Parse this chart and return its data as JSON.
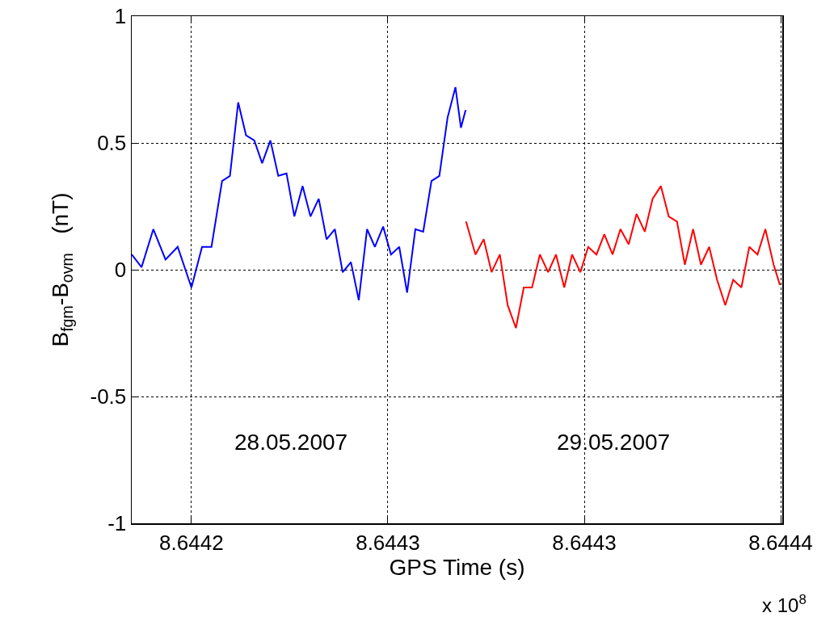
{
  "chart_data": {
    "type": "line",
    "xlabel": "GPS Time (s)",
    "ylabel": "B$_{fgm}$-B$_{ovm}$   (nT)",
    "xlim": [
      8.6442098,
      8.6443754
    ],
    "xticks": [
      {
        "value": 8.644225,
        "label": "8.6442"
      },
      {
        "value": 8.644275,
        "label": "8.6443"
      },
      {
        "value": 8.644325,
        "label": "8.6443"
      },
      {
        "value": 8.644375,
        "label": "8.6444"
      }
    ],
    "ylim": [
      -1,
      1
    ],
    "yticks": [
      -1,
      -0.5,
      0,
      0.5,
      1
    ],
    "grid": true,
    "marker": "none",
    "line_style": "solid",
    "annotations": [
      "28.05.2007",
      "29.05.2007",
      "x 10$^{8}$"
    ],
    "series": [
      {
        "color": "#0000ff",
        "x": [
          8.6442098,
          8.6442123,
          8.6442153,
          8.6442184,
          8.6442215,
          8.644225,
          8.6442277,
          8.6442301,
          8.6442328,
          8.6442348,
          8.6442369,
          8.6442389,
          8.644241,
          8.644243,
          8.6442451,
          8.6442471,
          8.6442492,
          8.6442512,
          8.6442533,
          8.6442553,
          8.6442574,
          8.6442594,
          8.6442615,
          8.6442635,
          8.6442656,
          8.6442676,
          8.6442697,
          8.6442717,
          8.6442738,
          8.6442758,
          8.6442779,
          8.6442799,
          8.644282,
          8.644284,
          8.6442861,
          8.6442881,
          8.6442902,
          8.6442922,
          8.6442936,
          8.6442948
        ],
        "values": [
          0.06,
          0.01,
          0.16,
          0.04,
          0.09,
          -0.07,
          0.09,
          0.09,
          0.35,
          0.37,
          0.66,
          0.53,
          0.51,
          0.42,
          0.51,
          0.37,
          0.38,
          0.21,
          0.33,
          0.21,
          0.28,
          0.12,
          0.16,
          -0.01,
          0.03,
          -0.12,
          0.16,
          0.09,
          0.17,
          0.06,
          0.09,
          -0.09,
          0.16,
          0.15,
          0.35,
          0.37,
          0.6,
          0.72,
          0.56,
          0.63
        ]
      },
      {
        "color": "#ff0000",
        "x": [
          8.6442949,
          8.6442973,
          8.6442994,
          8.6443014,
          8.6443035,
          8.6443055,
          8.6443076,
          8.6443096,
          8.6443117,
          8.6443137,
          8.6443158,
          8.6443178,
          8.6443199,
          8.6443219,
          8.644324,
          8.644326,
          8.6443281,
          8.6443301,
          8.6443322,
          8.6443342,
          8.6443363,
          8.6443383,
          8.6443404,
          8.6443424,
          8.6443445,
          8.6443465,
          8.6443486,
          8.6443506,
          8.6443527,
          8.6443547,
          8.6443568,
          8.6443588,
          8.6443609,
          8.6443629,
          8.644365,
          8.644367,
          8.6443691,
          8.6443711,
          8.6443732,
          8.6443748
        ],
        "values": [
          0.19,
          0.06,
          0.12,
          -0.01,
          0.06,
          -0.14,
          -0.23,
          -0.07,
          -0.07,
          0.06,
          -0.01,
          0.06,
          -0.07,
          0.06,
          -0.01,
          0.09,
          0.06,
          0.14,
          0.06,
          0.16,
          0.1,
          0.22,
          0.15,
          0.28,
          0.33,
          0.21,
          0.19,
          0.02,
          0.16,
          0.02,
          0.09,
          -0.04,
          -0.14,
          -0.04,
          -0.07,
          0.09,
          0.06,
          0.16,
          0.02,
          -0.06
        ]
      }
    ]
  }
}
